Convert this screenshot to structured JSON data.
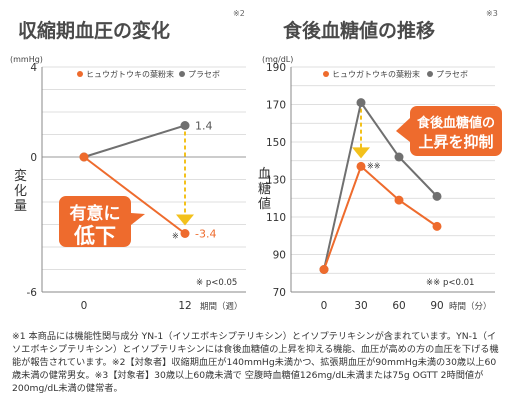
{
  "chart_data": [
    {
      "type": "line",
      "title": "収縮期血圧の変化",
      "title_note": "※2",
      "yunit": "(mmHg)",
      "ylabel": "変化量",
      "xlabel": "期間（週）",
      "categories": [
        "0",
        "12"
      ],
      "x": [
        0,
        12
      ],
      "ylim": [
        -6,
        4
      ],
      "yticks": [
        "4",
        "0",
        "-6"
      ],
      "xticks": [
        "0",
        "12"
      ],
      "grid": true,
      "legend_position": "top",
      "series": [
        {
          "name": "ヒュウガトウキの葉粉末",
          "values": [
            0,
            -3.4
          ],
          "labels": [
            "",
            "-3.4"
          ],
          "color": "#ee6b2d"
        },
        {
          "name": "プラセボ",
          "values": [
            0,
            1.4
          ],
          "labels": [
            "",
            "1.4"
          ],
          "color": "#707070"
        }
      ],
      "callout": "有意に\n低下",
      "mark": "※",
      "significance": "※ p<0.05"
    },
    {
      "type": "line",
      "title": "食後血糖値の推移",
      "title_note": "※3",
      "yunit": "(mg/dL)",
      "ylabel": "血糖値",
      "xlabel": "時間（分）",
      "categories": [
        "0",
        "30",
        "60",
        "90"
      ],
      "x": [
        0,
        30,
        60,
        90
      ],
      "ylim": [
        70,
        190
      ],
      "yticks": [
        "190",
        "170",
        "150",
        "130",
        "110",
        "90",
        "70"
      ],
      "xticks": [
        "0",
        "30",
        "60",
        "90"
      ],
      "grid": true,
      "legend_position": "top",
      "series": [
        {
          "name": "ヒュウガトウキの葉粉末",
          "values": [
            82,
            137,
            119,
            105
          ],
          "color": "#ee6b2d"
        },
        {
          "name": "プラセボ",
          "values": [
            82,
            171,
            142,
            121
          ],
          "color": "#707070"
        }
      ],
      "callout": "食後血糖値の\n上昇を抑制",
      "mark": "※※",
      "significance": "※※ p<0.01"
    }
  ],
  "footnote": "※1 本商品には機能性関与成分 YN-1（イソエボキシプテリキシン）とイソプテリキシンが含まれています。YN-1（イソエボキシプテリキシン）とイソプテリキシンには食後血糖値の上昇を抑える機能、血圧が高めの方の血圧を下げる機能が報告されています。※2【対象者】収縮期血圧が140mmHg未満かつ、拡張期血圧が90mmHg未満の30歳以上60歳未満の健常男女。※3【対象者】30歳以上60歳未満で 空腹時血糖値126mg/dL未満または75g OGTT 2時間値が200mg/dL未満の健常者。"
}
